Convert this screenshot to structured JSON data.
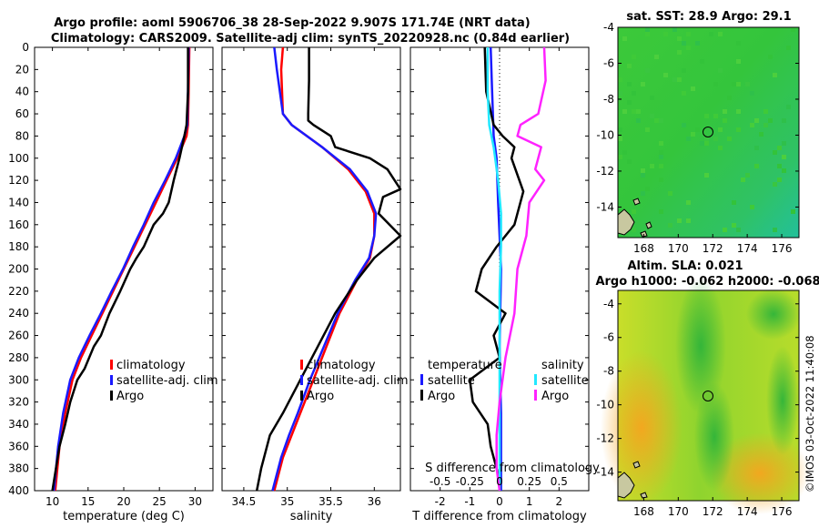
{
  "figure": {
    "title_line1": "Argo profile: aoml 5906706_38 28-Sep-2022 9.907S 171.74E (NRT data)",
    "title_line2": "Climatology: CARS2009. Satellite-adj clim: synTS_20220928.nc (0.84d earlier)",
    "credit": "©IMOS 03-Oct-2022 11:40:08"
  },
  "colors": {
    "climatology": "#ff0000",
    "satellite": "#1a1aff",
    "argo": "#000000",
    "sat_salinity": "#22e8ff",
    "argo_salinity": "#ff22ff"
  },
  "chart_data": [
    {
      "type": "line",
      "id": "temperature",
      "xlabel": "temperature (deg C)",
      "ylabel": "",
      "xlim": [
        7.5,
        32.5
      ],
      "ylim": [
        400,
        0
      ],
      "xticks": [
        10,
        15,
        20,
        25,
        30
      ],
      "yticks": [
        0,
        20,
        40,
        60,
        80,
        100,
        120,
        140,
        160,
        180,
        200,
        220,
        240,
        260,
        280,
        300,
        320,
        340,
        360,
        380,
        400
      ],
      "legend": [
        "climatology",
        "satellite-adj. clim",
        "Argo"
      ],
      "legend_position": "lower-right",
      "series": [
        {
          "name": "climatology",
          "x": [
            29.2,
            29.1,
            29.0,
            28.8,
            27.5,
            26.0,
            24.5,
            23.0,
            21.5,
            20.0,
            18.5,
            17.0,
            15.5,
            14.0,
            12.8,
            11.8,
            11.0,
            10.4
          ],
          "depth": [
            0,
            40,
            70,
            80,
            100,
            120,
            140,
            160,
            180,
            200,
            220,
            240,
            260,
            280,
            300,
            330,
            360,
            400
          ]
        },
        {
          "name": "satellite-adj. clim",
          "x": [
            29.1,
            29.0,
            28.9,
            28.5,
            27.3,
            25.8,
            24.2,
            22.8,
            21.3,
            19.9,
            18.3,
            16.8,
            15.2,
            13.7,
            12.5,
            11.5,
            10.8,
            10.2
          ],
          "depth": [
            0,
            40,
            70,
            80,
            100,
            120,
            140,
            160,
            180,
            200,
            220,
            240,
            260,
            280,
            300,
            330,
            360,
            400
          ]
        },
        {
          "name": "Argo",
          "x": [
            29.0,
            29.0,
            28.8,
            28.5,
            27.8,
            27.0,
            26.3,
            25.5,
            24.2,
            23.5,
            22.8,
            21.8,
            20.9,
            19.5,
            18.0,
            16.8,
            15.8,
            14.5,
            13.5,
            12.5,
            11.8,
            11.0,
            10.5,
            10.0
          ],
          "depth": [
            0,
            40,
            70,
            80,
            100,
            120,
            140,
            150,
            160,
            170,
            180,
            190,
            200,
            220,
            240,
            260,
            270,
            290,
            300,
            320,
            340,
            360,
            380,
            400
          ]
        }
      ]
    },
    {
      "type": "line",
      "id": "salinity",
      "xlabel": "salinity",
      "ylabel": "",
      "xlim": [
        34.25,
        36.3
      ],
      "ylim": [
        400,
        0
      ],
      "xticks": [
        34.5,
        35,
        35.5,
        36
      ],
      "legend": [
        "climatology",
        "satellite-adj. clim",
        "Argo"
      ],
      "legend_position": "lower-right",
      "series": [
        {
          "name": "climatology",
          "x": [
            34.95,
            34.93,
            34.95,
            35.05,
            35.4,
            35.7,
            35.9,
            36.0,
            36.0,
            35.95,
            35.8,
            35.6,
            35.45,
            35.3,
            35.15,
            35.05,
            34.95,
            34.85
          ],
          "depth": [
            0,
            20,
            60,
            70,
            90,
            110,
            130,
            150,
            170,
            190,
            210,
            240,
            270,
            300,
            330,
            350,
            370,
            400
          ]
        },
        {
          "name": "satellite-adj. clim",
          "x": [
            34.85,
            34.88,
            34.95,
            35.05,
            35.4,
            35.72,
            35.92,
            36.02,
            36.0,
            35.94,
            35.78,
            35.58,
            35.42,
            35.26,
            35.12,
            35.02,
            34.93,
            34.83
          ],
          "depth": [
            0,
            20,
            60,
            70,
            90,
            110,
            130,
            150,
            170,
            190,
            210,
            240,
            270,
            300,
            330,
            350,
            370,
            400
          ]
        },
        {
          "name": "Argo",
          "x": [
            35.25,
            35.25,
            35.24,
            35.24,
            35.3,
            35.5,
            35.55,
            35.95,
            36.15,
            36.3,
            36.1,
            36.05,
            36.3,
            36.0,
            35.8,
            35.55,
            35.35,
            35.15,
            34.95,
            34.8,
            34.7,
            34.65
          ],
          "depth": [
            0,
            30,
            60,
            66,
            70,
            80,
            90,
            100,
            110,
            128,
            135,
            150,
            170,
            190,
            210,
            240,
            270,
            300,
            330,
            350,
            380,
            400
          ]
        }
      ]
    },
    {
      "type": "line",
      "id": "difference",
      "xlabel": "T difference from climatology",
      "xlabel_top": "S difference from climatology",
      "ylabel": "",
      "xlim": [
        -3,
        3
      ],
      "ylim": [
        400,
        0
      ],
      "xticks": [
        -2,
        -1,
        0,
        1,
        2
      ],
      "s_xticks_labels": [
        "-0.5",
        "-0.25",
        "0",
        "0.25",
        "0.5"
      ],
      "s_xticks_values": [
        -2,
        -1,
        0,
        1,
        2
      ],
      "legend_temperature_title": "temperature",
      "legend_salinity_title": "salinity",
      "legend_temperature": [
        "satellite",
        "Argo"
      ],
      "legend_salinity": [
        "satellite",
        "Argo"
      ],
      "series": [
        {
          "name": "T satellite",
          "x": [
            -0.3,
            -0.25,
            -0.2,
            -0.1,
            -0.05,
            0.0,
            0.05,
            0.02,
            0.0,
            0.02,
            0.05,
            0.05,
            0.05,
            0.05
          ],
          "depth": [
            0,
            40,
            80,
            100,
            140,
            170,
            200,
            240,
            270,
            300,
            330,
            360,
            380,
            400
          ]
        },
        {
          "name": "T Argo",
          "x": [
            -0.5,
            -0.45,
            -0.2,
            0.1,
            0.5,
            0.4,
            0.8,
            0.5,
            -0.1,
            -0.6,
            -0.8,
            0.2,
            -0.2,
            0.0,
            -1.0,
            -0.9,
            -0.4,
            -0.3,
            -0.1,
            0.0,
            0.0
          ],
          "depth": [
            0,
            40,
            70,
            80,
            90,
            100,
            130,
            160,
            180,
            200,
            220,
            240,
            260,
            280,
            300,
            320,
            340,
            360,
            380,
            390,
            400
          ]
        },
        {
          "name": "S satellite",
          "x": [
            -0.4,
            -0.4,
            -0.35,
            -0.2,
            -0.05,
            0.05,
            0.05,
            0.0,
            0.0,
            0.0,
            0.0,
            0.0,
            0.0
          ],
          "depth": [
            0,
            40,
            70,
            90,
            120,
            150,
            180,
            220,
            260,
            300,
            340,
            380,
            400
          ]
        },
        {
          "name": "S Argo",
          "x": [
            1.5,
            1.55,
            1.3,
            0.7,
            0.6,
            1.4,
            1.2,
            1.5,
            1.0,
            0.9,
            0.6,
            0.5,
            0.2,
            0.0,
            -0.1,
            -0.1,
            0.0
          ],
          "depth": [
            0,
            30,
            60,
            70,
            80,
            90,
            110,
            120,
            140,
            170,
            200,
            240,
            280,
            320,
            350,
            380,
            400
          ]
        }
      ]
    },
    {
      "type": "heatmap",
      "id": "sst_map",
      "title": "sat. SST: 28.9 Argo: 29.1",
      "xlim": [
        166.5,
        177
      ],
      "ylim": [
        -15.7,
        -4
      ],
      "xticks": [
        168,
        170,
        172,
        174,
        176
      ],
      "yticks": [
        -4,
        -6,
        -8,
        -10,
        -12,
        -14
      ],
      "marker": {
        "lon": 171.74,
        "lat": -9.907
      }
    },
    {
      "type": "heatmap",
      "id": "sla_map",
      "title_line1": "Altim. SLA: 0.021",
      "title_line2": "Argo h1000: -0.062 h2000: -0.068",
      "xlim": [
        166.5,
        177
      ],
      "ylim": [
        -15.7,
        -3.2
      ],
      "xticks": [
        168,
        170,
        172,
        174,
        176
      ],
      "yticks": [
        -4,
        -6,
        -8,
        -10,
        -12,
        -14
      ],
      "marker": {
        "lon": 171.74,
        "lat": -9.907
      }
    }
  ]
}
